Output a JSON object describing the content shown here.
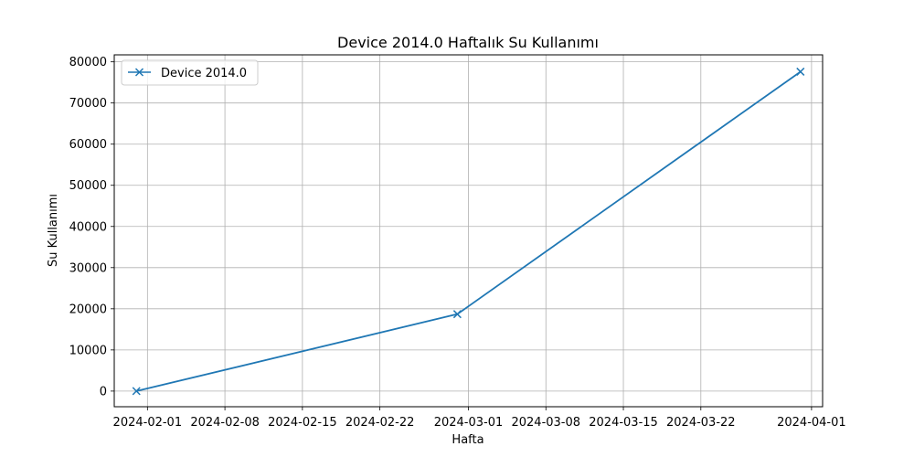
{
  "chart_data": {
    "type": "line",
    "title": "Device 2014.0 Haftalık Su Kullanımı",
    "xlabel": "Hafta",
    "ylabel": "Su Kullanımı",
    "grid": true,
    "legend_position": "top-left",
    "x_range": [
      "2024-01-29",
      "2024-04-02"
    ],
    "y_range": [
      -3800,
      81700
    ],
    "x_ticks": [
      "2024-02-01",
      "2024-02-08",
      "2024-02-15",
      "2024-02-22",
      "2024-03-01",
      "2024-03-08",
      "2024-03-15",
      "2024-03-22",
      "2024-04-01"
    ],
    "y_ticks": [
      0,
      10000,
      20000,
      30000,
      40000,
      50000,
      60000,
      70000,
      80000
    ],
    "series": [
      {
        "name": "Device 2014.0",
        "color": "#1f77b4",
        "marker": "x",
        "x": [
          "2024-01-31",
          "2024-02-29",
          "2024-03-31"
        ],
        "values": [
          0,
          18700,
          77600
        ]
      }
    ]
  }
}
